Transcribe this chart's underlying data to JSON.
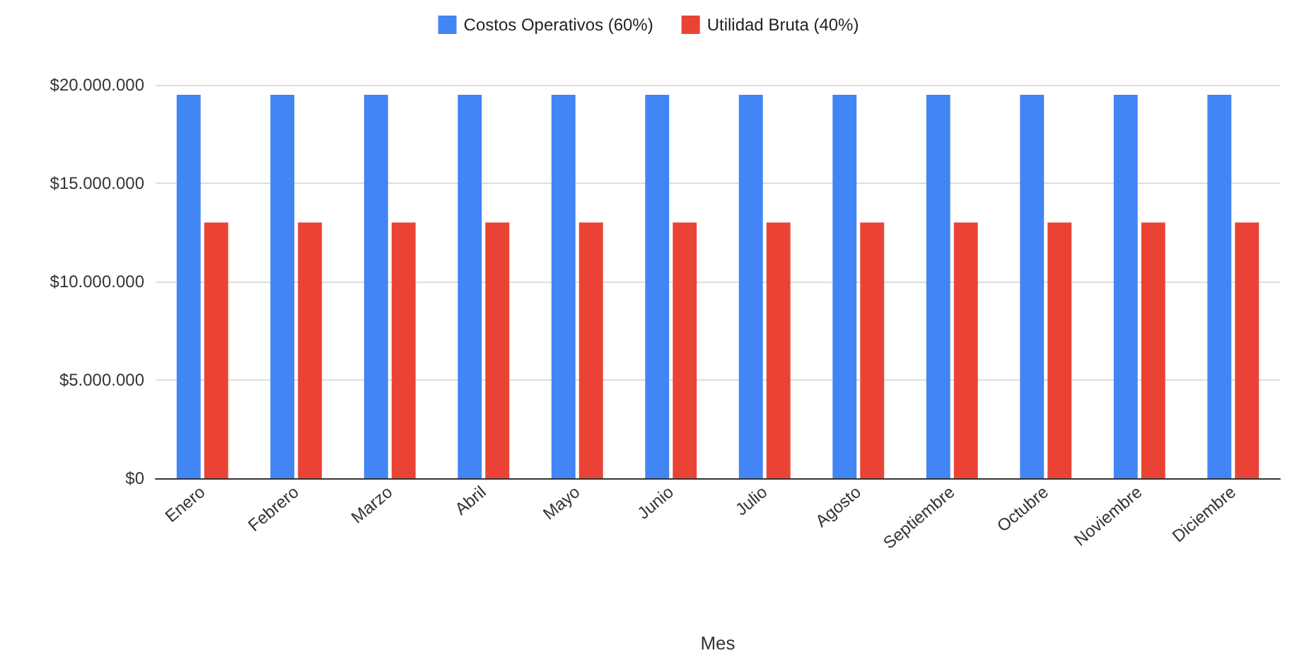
{
  "chart_data": {
    "type": "bar",
    "xlabel": "Mes",
    "categories": [
      "Enero",
      "Febrero",
      "Marzo",
      "Abril",
      "Mayo",
      "Junio",
      "Julio",
      "Agosto",
      "Septiembre",
      "Octubre",
      "Noviembre",
      "Diciembre"
    ],
    "series": [
      {
        "name": "Costos Operativos (60%)",
        "color": "#4285f4",
        "values": [
          19500000,
          19500000,
          19500000,
          19500000,
          19500000,
          19500000,
          19500000,
          19500000,
          19500000,
          19500000,
          19500000,
          19500000
        ]
      },
      {
        "name": "Utilidad Bruta (40%)",
        "color": "#ea4335",
        "values": [
          13000000,
          13000000,
          13000000,
          13000000,
          13000000,
          13000000,
          13000000,
          13000000,
          13000000,
          13000000,
          13000000,
          13000000
        ]
      }
    ],
    "ylim": [
      0,
      20000000
    ],
    "yticks": [
      {
        "value": 0,
        "label": "$0"
      },
      {
        "value": 5000000,
        "label": "$5.000.000"
      },
      {
        "value": 10000000,
        "label": "$10.000.000"
      },
      {
        "value": 15000000,
        "label": "$15.000.000"
      },
      {
        "value": 20000000,
        "label": "$20.000.000"
      }
    ],
    "grid": "y",
    "legend": "top"
  }
}
